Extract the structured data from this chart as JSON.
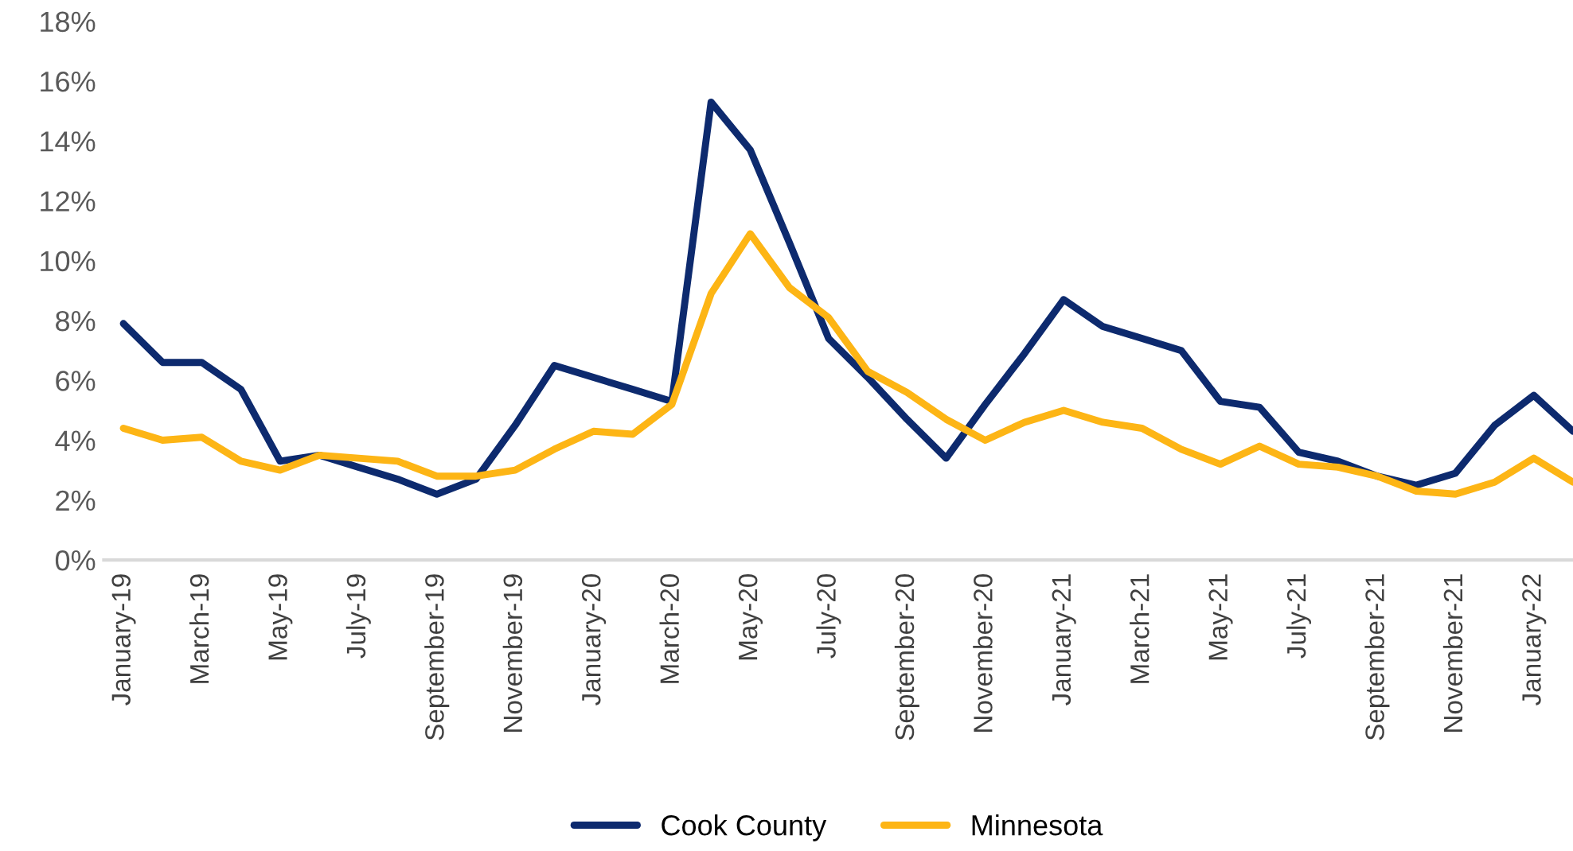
{
  "chart_data": {
    "type": "line",
    "categories": [
      "January-19",
      null,
      "March-19",
      null,
      "May-19",
      null,
      "July-19",
      null,
      "September-19",
      null,
      "November-19",
      null,
      "January-20",
      null,
      "March-20",
      null,
      "May-20",
      null,
      "July-20",
      null,
      "September-20",
      null,
      "November-20",
      null,
      "January-21",
      null,
      "March-21",
      null,
      "May-21",
      null,
      "July-21",
      null,
      "September-21",
      null,
      "November-21",
      null,
      "January-22",
      null
    ],
    "series": [
      {
        "name": "Cook County",
        "color": "#0d2a6e",
        "values": [
          7.9,
          6.6,
          6.6,
          5.7,
          3.3,
          3.5,
          3.1,
          2.7,
          2.2,
          2.7,
          4.5,
          6.5,
          6.1,
          5.7,
          5.3,
          15.3,
          13.7,
          10.6,
          7.4,
          6.1,
          4.7,
          3.4,
          5.2,
          6.9,
          8.7,
          7.8,
          7.4,
          7.0,
          5.3,
          5.1,
          3.6,
          3.3,
          2.8,
          2.5,
          2.9,
          4.5,
          5.5,
          4.3
        ]
      },
      {
        "name": "Minnesota",
        "color": "#fdb515",
        "values": [
          4.4,
          4.0,
          4.1,
          3.3,
          3.0,
          3.5,
          3.4,
          3.3,
          2.8,
          2.8,
          3.0,
          3.7,
          4.3,
          4.2,
          5.2,
          8.9,
          10.9,
          9.1,
          8.1,
          6.3,
          5.6,
          4.7,
          4.0,
          4.6,
          5.0,
          4.6,
          4.4,
          3.7,
          3.2,
          3.8,
          3.2,
          3.1,
          2.8,
          2.3,
          2.2,
          2.6,
          3.4,
          2.6
        ]
      }
    ],
    "ylim": [
      0,
      18
    ],
    "yticks": [
      {
        "value": 0,
        "label": "0%"
      },
      {
        "value": 2,
        "label": "2%"
      },
      {
        "value": 4,
        "label": "4%"
      },
      {
        "value": 6,
        "label": "6%"
      },
      {
        "value": 8,
        "label": "8%"
      },
      {
        "value": 10,
        "label": "10%"
      },
      {
        "value": 12,
        "label": "12%"
      },
      {
        "value": 14,
        "label": "14%"
      },
      {
        "value": 16,
        "label": "16%"
      },
      {
        "value": 18,
        "label": "18%"
      }
    ],
    "legend": "bottom",
    "marker": "none",
    "line_style": "solid"
  }
}
